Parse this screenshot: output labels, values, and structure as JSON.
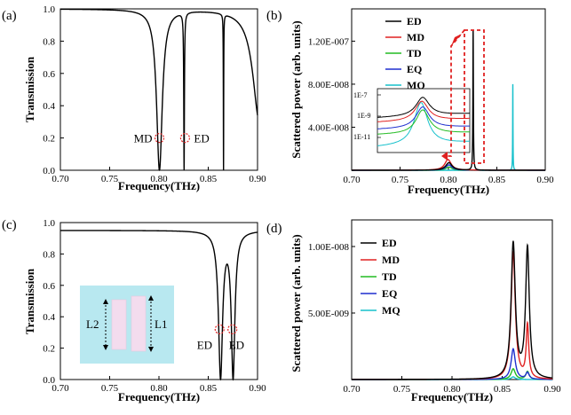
{
  "figure": {
    "panels": [
      {
        "id": "a",
        "label": "(a)"
      },
      {
        "id": "b",
        "label": "(b)"
      },
      {
        "id": "c",
        "label": "(c)"
      },
      {
        "id": "d",
        "label": "(d)"
      }
    ]
  },
  "colors": {
    "ED": "#000000",
    "MD": "#e02020",
    "TD": "#22bb22",
    "EQ": "#1f2fcf",
    "MQ": "#17c1cc",
    "callout": "#e02020",
    "inset_bg": "#b8e8f0",
    "rod": "#f3dcee"
  },
  "chart_data": [
    {
      "panel": "a",
      "type": "line",
      "title": "",
      "xlabel": "Frequency(THz)",
      "ylabel": "Transmission",
      "xlim": [
        0.7,
        0.9
      ],
      "ylim": [
        0.0,
        1.0
      ],
      "xticks": [
        "0.70",
        "0.75",
        "0.80",
        "0.85",
        "0.90"
      ],
      "yticks": [
        "0.0",
        "0.2",
        "0.4",
        "0.6",
        "0.8",
        "1.0"
      ],
      "dips": [
        {
          "x": 0.8005,
          "min": 0.0,
          "width": 0.0035
        },
        {
          "x": 0.8255,
          "min": 0.0,
          "width": 0.0004
        },
        {
          "x": 0.8655,
          "min": 0.0,
          "width": 0.0002
        },
        {
          "x": 0.902,
          "min": 0.3,
          "width": 0.008
        }
      ],
      "baseline": 1.0,
      "annotations": [
        {
          "text": "MD",
          "x": 0.8005,
          "y": 0.2
        },
        {
          "text": "ED",
          "x": 0.8265,
          "y": 0.2
        }
      ]
    },
    {
      "panel": "b",
      "type": "line",
      "xlabel": "Frequency(THz)",
      "ylabel": "Scattered power (arb. units)",
      "xlim": [
        0.7,
        0.9
      ],
      "ylim": [
        0,
        1.5e-07
      ],
      "xticks": [
        "0.70",
        "0.75",
        "0.80",
        "0.85",
        "0.90"
      ],
      "yticks": [
        {
          "value": 4e-08,
          "label": "4.00E-008"
        },
        {
          "value": 8e-08,
          "label": "8.00E-008"
        },
        {
          "value": 1.2e-07,
          "label": "1.20E-007"
        }
      ],
      "legend": [
        "ED",
        "MD",
        "TD",
        "EQ",
        "MQ"
      ],
      "series": [
        {
          "name": "ED",
          "peaks": [
            {
              "x": 0.8005,
              "h": 7e-09,
              "w": 0.004
            },
            {
              "x": 0.8255,
              "h": 1.3e-07,
              "w": 0.0003
            }
          ]
        },
        {
          "name": "MD",
          "peaks": [
            {
              "x": 0.7995,
              "h": 1e-08,
              "w": 0.004
            }
          ]
        },
        {
          "name": "TD",
          "peaks": [
            {
              "x": 0.8005,
              "h": 3e-09,
              "w": 0.004
            }
          ]
        },
        {
          "name": "EQ",
          "peaks": [
            {
              "x": 0.8005,
              "h": 5e-09,
              "w": 0.004
            }
          ]
        },
        {
          "name": "MQ",
          "peaks": [
            {
              "x": 0.8665,
              "h": 8e-08,
              "w": 0.0002
            }
          ]
        }
      ],
      "inset": {
        "yscale": "log",
        "ytick_labels": [
          "1E-7",
          "1E-9",
          "1E-11"
        ]
      }
    },
    {
      "panel": "c",
      "type": "line",
      "xlabel": "Frequency(THz)",
      "ylabel": "Transmission",
      "xlim": [
        0.7,
        0.9
      ],
      "ylim": [
        0.0,
        1.0
      ],
      "xticks": [
        "0.70",
        "0.75",
        "0.80",
        "0.85",
        "0.90"
      ],
      "yticks": [
        "0.0",
        "0.2",
        "0.4",
        "0.6",
        "0.8",
        "1.0"
      ],
      "baseline_start": 0.95,
      "dips": [
        {
          "x": 0.8625,
          "min": 0.0,
          "width": 0.0025
        },
        {
          "x": 0.8752,
          "min": 0.0,
          "width": 0.0022
        }
      ],
      "annotations": [
        {
          "text": "ED",
          "x": 0.8615,
          "y": 0.32
        },
        {
          "text": "ED",
          "x": 0.8745,
          "y": 0.32
        }
      ],
      "inset": {
        "labels": [
          "L2",
          "L1"
        ]
      }
    },
    {
      "panel": "d",
      "type": "line",
      "xlabel": "Frequency(THz)",
      "ylabel": "Scattered power (arb. units)",
      "xlim": [
        0.7,
        0.9
      ],
      "ylim": [
        0,
        1.2e-08
      ],
      "xticks": [
        "0.70",
        "0.75",
        "0.80",
        "0.85",
        "0.90"
      ],
      "yticks": [
        {
          "value": 5e-09,
          "label": "5.00E-009"
        },
        {
          "value": 1e-08,
          "label": "1.00E-008"
        }
      ],
      "legend": [
        "ED",
        "MD",
        "TD",
        "EQ",
        "MQ"
      ],
      "series": [
        {
          "name": "ED",
          "peaks": [
            {
              "x": 0.861,
              "h": 1.02e-08,
              "w": 0.0025
            },
            {
              "x": 0.8752,
              "h": 9.8e-09,
              "w": 0.0022
            }
          ]
        },
        {
          "name": "MD",
          "peaks": [
            {
              "x": 0.861,
              "h": 9.6e-09,
              "w": 0.0025
            },
            {
              "x": 0.8752,
              "h": 4e-09,
              "w": 0.0015
            }
          ]
        },
        {
          "name": "TD",
          "peaks": [
            {
              "x": 0.861,
              "h": 8e-10,
              "w": 0.0025
            },
            {
              "x": 0.8752,
              "h": 6e-10,
              "w": 0.002
            }
          ]
        },
        {
          "name": "EQ",
          "peaks": [
            {
              "x": 0.861,
              "h": 2.3e-09,
              "w": 0.0025
            },
            {
              "x": 0.8752,
              "h": 5e-10,
              "w": 0.002
            }
          ]
        },
        {
          "name": "MQ",
          "peaks": [
            {
              "x": 0.861,
              "h": 2e-10,
              "w": 0.0025
            }
          ]
        }
      ]
    }
  ]
}
